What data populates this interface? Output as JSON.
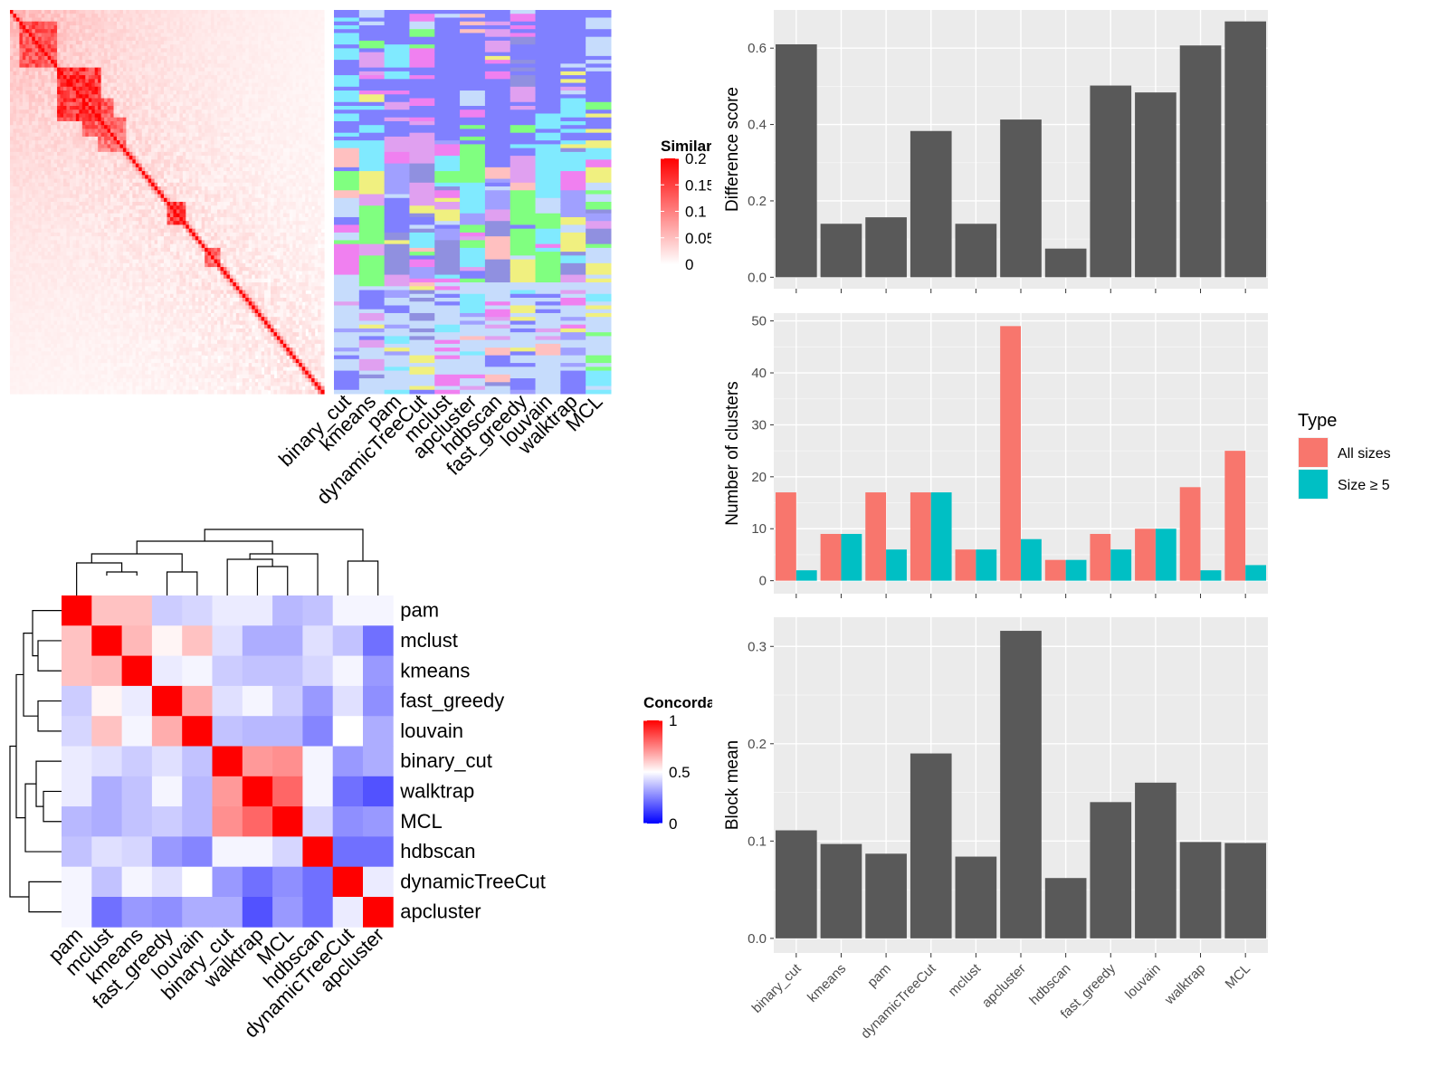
{
  "chart_data": [
    {
      "type": "heatmap",
      "name": "similarity-heatmap",
      "legend": {
        "title": "Similarity",
        "tick_labels": [
          "0.2",
          "0.15",
          "0.1",
          "0.05",
          "0"
        ],
        "tick_values": [
          0.2,
          0.15,
          0.1,
          0.05,
          0
        ],
        "range": [
          0,
          0.2
        ],
        "colors": {
          "low": "#ffffff",
          "high": "#ff0000"
        }
      },
      "diagonal_blocks": [
        {
          "span": [
            0.03,
            0.14
          ],
          "value": 0.17
        },
        {
          "span": [
            0.15,
            0.28
          ],
          "value": 0.2
        },
        {
          "span": [
            0.23,
            0.32
          ],
          "value": 0.16
        },
        {
          "span": [
            0.28,
            0.36
          ],
          "value": 0.14
        },
        {
          "span": [
            0.5,
            0.55
          ],
          "value": 0.19
        },
        {
          "span": [
            0.62,
            0.66
          ],
          "value": 0.15
        }
      ]
    },
    {
      "type": "heatmap",
      "name": "cluster-assignment-heatmap",
      "columns": [
        "binary_cut",
        "kmeans",
        "pam",
        "dynamicTreeCut",
        "mclust",
        "apcluster",
        "hdbscan",
        "fast_greedy",
        "louvain",
        "walktrap",
        "MCL"
      ],
      "palette": [
        "#8080ff",
        "#c6dcfc",
        "#80eaff",
        "#80ff80",
        "#f080f0",
        "#f0f080",
        "#ffc0c0",
        "#a0a0ff",
        "#e0a0f0",
        "#9090e0"
      ]
    },
    {
      "type": "heatmap",
      "name": "concordance-heatmap",
      "methods": [
        "pam",
        "mclust",
        "kmeans",
        "fast_greedy",
        "louvain",
        "binary_cut",
        "walktrap",
        "MCL",
        "hdbscan",
        "dynamicTreeCut",
        "apcluster"
      ],
      "values": [
        [
          1,
          0.62,
          0.62,
          0.4,
          0.42,
          0.46,
          0.46,
          0.36,
          0.38,
          0.48,
          0.48
        ],
        [
          0.62,
          1,
          0.64,
          0.52,
          0.62,
          0.44,
          0.34,
          0.34,
          0.44,
          0.38,
          0.22
        ],
        [
          0.62,
          0.64,
          1,
          0.46,
          0.48,
          0.4,
          0.38,
          0.38,
          0.42,
          0.48,
          0.3
        ],
        [
          0.4,
          0.52,
          0.46,
          1,
          0.66,
          0.44,
          0.48,
          0.4,
          0.3,
          0.44,
          0.28
        ],
        [
          0.42,
          0.62,
          0.48,
          0.66,
          1,
          0.38,
          0.36,
          0.36,
          0.26,
          0.5,
          0.34
        ],
        [
          0.46,
          0.44,
          0.4,
          0.44,
          0.38,
          1,
          0.7,
          0.72,
          0.48,
          0.3,
          0.34
        ],
        [
          0.46,
          0.34,
          0.38,
          0.48,
          0.36,
          0.7,
          1,
          0.8,
          0.48,
          0.22,
          0.16
        ],
        [
          0.36,
          0.34,
          0.38,
          0.4,
          0.36,
          0.72,
          0.8,
          1,
          0.42,
          0.28,
          0.3
        ],
        [
          0.38,
          0.44,
          0.42,
          0.3,
          0.26,
          0.48,
          0.48,
          0.42,
          1,
          0.22,
          0.22
        ],
        [
          0.48,
          0.38,
          0.48,
          0.44,
          0.5,
          0.3,
          0.22,
          0.28,
          0.22,
          1,
          0.46
        ],
        [
          0.48,
          0.22,
          0.3,
          0.28,
          0.34,
          0.34,
          0.16,
          0.3,
          0.22,
          0.46,
          1
        ]
      ],
      "legend": {
        "title": "Concordance",
        "tick_labels": [
          "1",
          "0.5",
          "0"
        ],
        "tick_values": [
          1,
          0.5,
          0
        ],
        "colors": {
          "low": "#0000ff",
          "mid": "#ffffff",
          "high": "#ff0000"
        }
      }
    },
    {
      "type": "bar",
      "name": "difference-score",
      "categories": [
        "binary_cut",
        "kmeans",
        "pam",
        "dynamicTreeCut",
        "mclust",
        "apcluster",
        "hdbscan",
        "fast_greedy",
        "louvain",
        "walktrap",
        "MCL"
      ],
      "values": [
        0.61,
        0.14,
        0.157,
        0.383,
        0.14,
        0.413,
        0.075,
        0.502,
        0.484,
        0.607,
        0.67
      ],
      "ylabel": "Difference score",
      "ylim": [
        -0.03,
        0.7
      ],
      "yticks": [
        0,
        0.2,
        0.4,
        0.6
      ],
      "ytick_labels": [
        "0.0",
        "0.2",
        "0.4",
        "0.6"
      ],
      "grid": true,
      "bar_color": "#595959"
    },
    {
      "type": "bar",
      "name": "number-of-clusters",
      "categories": [
        "binary_cut",
        "kmeans",
        "pam",
        "dynamicTreeCut",
        "mclust",
        "apcluster",
        "hdbscan",
        "fast_greedy",
        "louvain",
        "walktrap",
        "MCL"
      ],
      "series": [
        {
          "name": "All sizes",
          "color": "#f8766d",
          "values": [
            17,
            9,
            17,
            17,
            6,
            49,
            4,
            9,
            10,
            18,
            25
          ]
        },
        {
          "name": "Size ≥ 5",
          "color": "#00bfc4",
          "values": [
            2,
            9,
            6,
            17,
            6,
            8,
            4,
            6,
            10,
            2,
            3
          ]
        }
      ],
      "ylabel": "Number of clusters",
      "ylim": [
        -2.5,
        51.5
      ],
      "yticks": [
        0,
        10,
        20,
        30,
        40,
        50
      ],
      "ytick_labels": [
        "0",
        "10",
        "20",
        "30",
        "40",
        "50"
      ],
      "grid": true,
      "legend": {
        "title": "Type",
        "placement": "right"
      }
    },
    {
      "type": "bar",
      "name": "block-mean",
      "categories": [
        "binary_cut",
        "kmeans",
        "pam",
        "dynamicTreeCut",
        "mclust",
        "apcluster",
        "hdbscan",
        "fast_greedy",
        "louvain",
        "walktrap",
        "MCL"
      ],
      "values": [
        0.111,
        0.097,
        0.087,
        0.19,
        0.084,
        0.316,
        0.062,
        0.14,
        0.16,
        0.099,
        0.098
      ],
      "ylabel": "Block mean",
      "ylim": [
        -0.015,
        0.33
      ],
      "yticks": [
        0,
        0.1,
        0.2,
        0.3
      ],
      "ytick_labels": [
        "0.0",
        "0.1",
        "0.2",
        "0.3"
      ],
      "grid": true,
      "bar_color": "#595959"
    }
  ]
}
